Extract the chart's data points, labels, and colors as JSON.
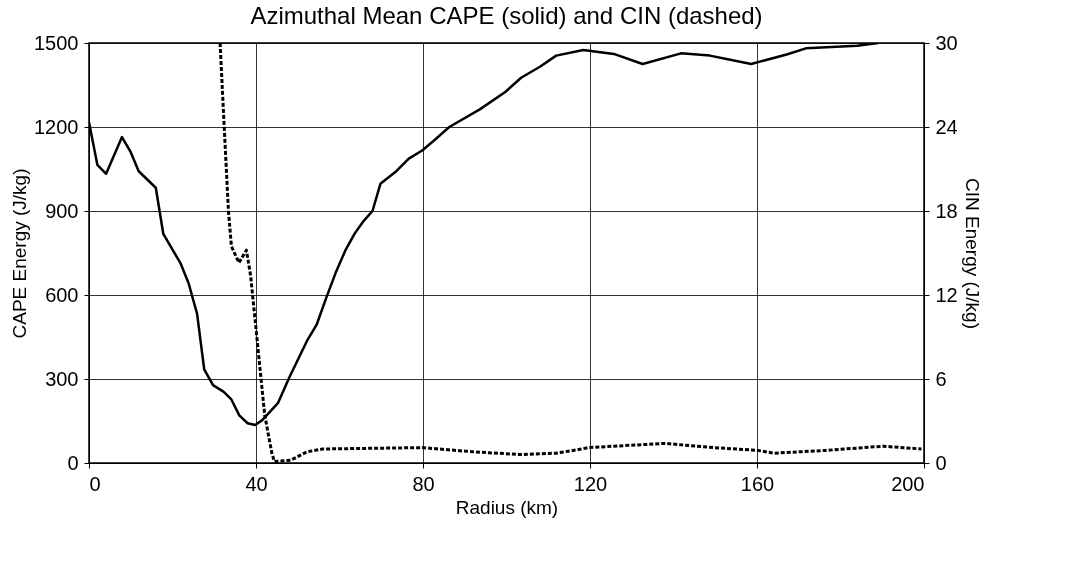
{
  "chart_data": {
    "type": "line",
    "title": "Azimuthal Mean CAPE (solid) and CIN (dashed)",
    "xlabel": "Radius (km)",
    "ylabel": "CAPE Energy (J/kg)",
    "y2label": "CIN Energy (J/kg)",
    "xlim": [
      0,
      200
    ],
    "xticks": [
      0,
      40,
      80,
      120,
      160,
      200
    ],
    "ylim": [
      0,
      1500
    ],
    "yticks": [
      0,
      300,
      600,
      900,
      1200,
      1500
    ],
    "y2lim": [
      0,
      30
    ],
    "y2ticks": [
      0,
      6,
      12,
      18,
      24,
      30
    ],
    "grid": true,
    "series": [
      {
        "color": "#000000",
        "line_style": "solid",
        "x": [
          0,
          2,
          4.1,
          7.9,
          10,
          11.9,
          16,
          17.8,
          21.9,
          23.9,
          25.9,
          27.6,
          29.7,
          32.2,
          34.1,
          36,
          38,
          39.8,
          41.5,
          45.3,
          48,
          52.2,
          54.5,
          56.8,
          59.1,
          61.4,
          63.7,
          65.6,
          67.9,
          69.8,
          73.6,
          76.6,
          79.8,
          82.5,
          86.3,
          93.6,
          99.7,
          103.5,
          108.1,
          111.9,
          118.4,
          125.7,
          132.6,
          141.8,
          148.7,
          153.3,
          158.6,
          167.1,
          171.7,
          184,
          189
        ],
        "values": [
          1217,
          1065,
          1033,
          1164,
          1110,
          1042,
          983,
          818,
          714,
          640,
          532,
          334,
          278,
          255,
          227,
          170,
          142,
          136,
          153,
          215,
          306,
          436,
          493,
          589,
          680,
          759,
          821,
          861,
          900,
          997,
          1042,
          1087,
          1116,
          1150,
          1200,
          1263,
          1325,
          1376,
          1416,
          1455,
          1475,
          1461,
          1425,
          1463,
          1455,
          1441,
          1425,
          1459,
          1481,
          1490,
          1500
        ]
      },
      {
        "color": "#000000",
        "line_style": "dashed",
        "axis": "y2",
        "x": [
          31.4,
          32.4,
          33.4,
          34.1,
          35.9,
          37.7,
          38.7,
          39.8,
          41,
          42.1,
          43.8,
          44.4,
          48.3,
          52.2,
          56,
          79.8,
          92,
          103.5,
          111.9,
          118,
          119.6,
          138,
          149.5,
          160.3,
          164.1,
          176.4,
          190.2,
          199.4
        ],
        "values": [
          30,
          23.9,
          18,
          15.5,
          14.3,
          15.2,
          13.4,
          10.2,
          6.6,
          3.4,
          0.7,
          0.1,
          0.2,
          0.8,
          1,
          1.1,
          0.8,
          0.6,
          0.7,
          1,
          1.1,
          1.4,
          1.1,
          0.9,
          0.7,
          0.9,
          1.2,
          1
        ]
      }
    ]
  }
}
